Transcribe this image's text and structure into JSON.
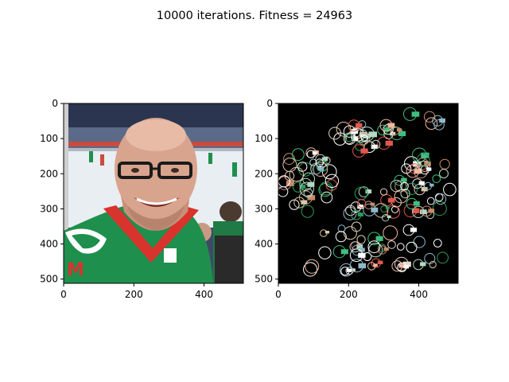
{
  "figure": {
    "suptitle": "10000 iterations. Fitness = 24963"
  },
  "colors": {
    "background": "#ffffff",
    "axes_frame": "#000000",
    "right_panel_background": "#000000",
    "jersey_green": "#1f8f4e",
    "jersey_red": "#d8332c",
    "skin": "#d9a48e",
    "ice": "#e9eef2",
    "arena_stands": "#3d4a66"
  },
  "chart_data": [
    {
      "type": "image",
      "panel": "left",
      "content": "photo of a smiling bald man with glasses in a green and red hockey jersey at an ice rink",
      "x_ticks": [
        0,
        200,
        400
      ],
      "y_ticks": [
        0,
        100,
        200,
        300,
        400,
        500
      ],
      "xlim": [
        0,
        512
      ],
      "ylim": [
        512,
        0
      ],
      "grid": false
    },
    {
      "type": "image",
      "panel": "right",
      "content": "evolved approximation made of small face-like icons on black background",
      "x_ticks": [
        0,
        200,
        400
      ],
      "y_ticks": [
        0,
        100,
        200,
        300,
        400,
        500
      ],
      "xlim": [
        0,
        512
      ],
      "ylim": [
        512,
        0
      ],
      "grid": false
    }
  ]
}
